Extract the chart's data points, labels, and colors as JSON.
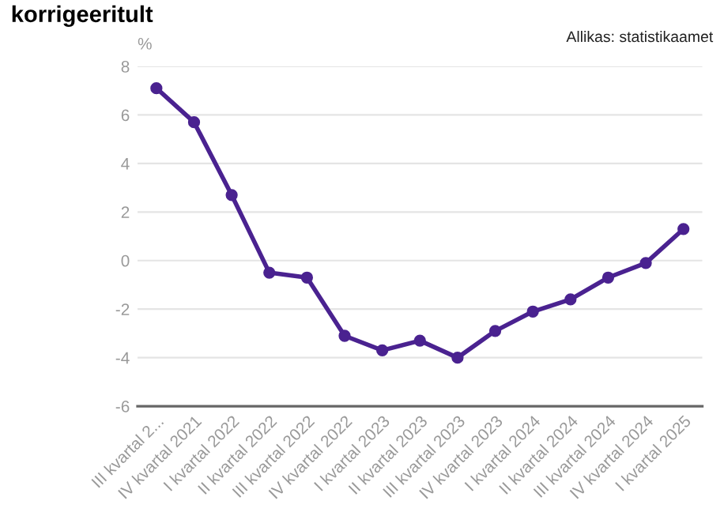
{
  "chart_data": {
    "type": "line",
    "title": "korrigeeritult",
    "ylabel": "%",
    "annotations": [
      "Allikas: statistikaamet"
    ],
    "categories": [
      "III kvartal 2...",
      "IV kvartal 2021",
      "I kvartal 2022",
      "II kvartal 2022",
      "III kvartal 2022",
      "IV kvartal 2022",
      "I kvartal 2023",
      "II kvartal 2023",
      "III kvartal 2023",
      "IV kvartal 2023",
      "I kvartal 2024",
      "II kvartal 2024",
      "III kvartal 2024",
      "IV kvartal 2024",
      "I kvartal 2025"
    ],
    "series": [
      {
        "color": "#4a2290",
        "values": [
          7.1,
          5.7,
          2.7,
          -0.5,
          -0.7,
          -3.1,
          -3.7,
          -3.3,
          -4.0,
          -2.9,
          -2.1,
          -1.6,
          -0.7,
          -0.1,
          1.3
        ]
      }
    ],
    "ylim": [
      -6,
      8
    ],
    "yticks": [
      -6,
      -4,
      -2,
      0,
      2,
      4,
      6,
      8
    ],
    "grid": "y",
    "marker": "circle",
    "line_style": "solid"
  }
}
